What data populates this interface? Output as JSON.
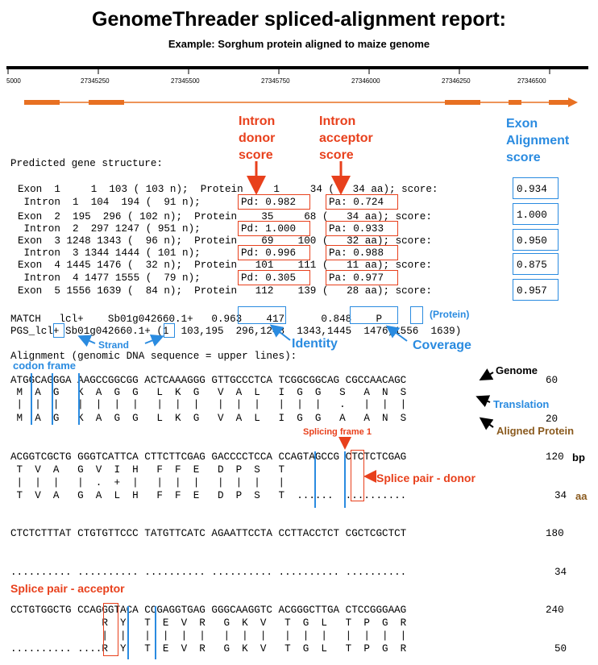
{
  "title": "GenomeThreader spliced-alignment report:",
  "subtitle": "Example: Sorghum protein aligned to maize genome",
  "ruler": {
    "ticks": [
      "5000",
      "27345250",
      "27345500",
      "27345750",
      "27346000",
      "27346250",
      "27346500"
    ]
  },
  "annotations": {
    "intron_donor": "Intron\ndonor\nscore",
    "intron_acceptor": "Intron\nacceptor\nscore",
    "exon_alignment": "Exon\nAlignment\nscore",
    "protein": "(Protein)",
    "strand": "Strand",
    "identity": "Identity",
    "coverage": "Coverage",
    "codon_frame": "codon frame",
    "genome": "Genome",
    "translation": "Translation",
    "aligned_protein": "Aligned Protein",
    "splicing_frame": "Splicing frame 1",
    "splice_donor": "Splice pair - donor",
    "splice_acceptor": "Splice pair - acceptor",
    "bp": "bp",
    "aa": "aa"
  },
  "gene_structure": {
    "heading": "Predicted gene structure:",
    "rows": [
      "Exon  1     1  103 ( 103 n);  Protein     1     34 (   34 aa); score:",
      " Intron  1  104  194 (  91 n);           Pa: 0.724",
      "Exon  2  195  296 ( 102 n);  Protein    35     68 (   34 aa); score:",
      " Intron  2  297 1247 ( 951 n);           Pa: 0.933",
      "Exon  3 1248 1343 (  96 n);  Protein    69    100 (   32 aa); score:",
      " Intron  3 1344 1444 ( 101 n);           Pa: 0.988",
      "Exon  4 1445 1476 (  32 n);  Protein   101    111 (   11 aa); score:",
      " Intron  4 1477 1555 (  79 n);           Pa: 0.977",
      "Exon  5 1556 1639 (  84 n);  Protein   112    139 (   28 aa); score:"
    ],
    "donor_scores": [
      "Pd: 0.982",
      "Pd: 1.000",
      "Pd: 0.996",
      "Pd: 0.305"
    ],
    "acceptor_scores": [
      "Pa: 0.724",
      "Pa: 0.933",
      "Pa: 0.988",
      "Pa: 0.977"
    ],
    "exon_scores": [
      "0.934",
      "1.000",
      "0.950",
      "0.875",
      "0.957"
    ]
  },
  "match_line": "MATCH   lcl+    Sb01g042660.1+   0.963    417      0.848    P",
  "pgs_line": "PGS_lcl+ Sb01g042660.1+ (1  103,195  296,1248  1343,1445  1476,1556  1639)",
  "alignment_heading": "Alignment (genomic DNA sequence = upper lines):",
  "alignment_blocks": [
    {
      "lines": [
        "ATGGCAGGGA AAGCCGGCGG ACTCAAAGGG GTTGCCCTCA TCGGCGGCAG CGCCAACAGC",
        " M  A  G   K  A  G  G   L  K  G   V  A  L   I  G  G   S   A  N  S",
        " |  |  |   |  |  |  |   |  |  |   |  |  |   |  |  |   .   |  |  |",
        " M  A  G   K  A  G  G   L  K  G   V  A  L   I  G  G   A   A  N  S"
      ],
      "bp": "60",
      "aa": "20"
    },
    {
      "lines": [
        "ACGGTCGCTG GGGTCATTCA CTTCTTCGAG GACCCCTCCA CCAGTAGCCG CTCTCTCGAG",
        " T  V  A   G  V  I  H   F  F  E   D  P  S   T",
        " |  |  |   |  .  +  |   |  |  |   |  |  |   |",
        " T  V  A   G  A  L  H   F  F  E   D  P  S   T  ......  .........."
      ],
      "bp": "120",
      "aa": "34"
    },
    {
      "lines": [
        "CTCTCTTTAT CTGTGTTCCC TATGTTCATC AGAATTCCTA CCTTACCTCT CGCTCGCTCT",
        "",
        "",
        ".......... .......... .......... .......... .......... .........."
      ],
      "bp": "180",
      "aa": "34"
    },
    {
      "lines": [
        "CCTGTGGCTG CCAGGGTACA CCGAGGTGAG GGGCAAGGTC ACGGGCTTGA CTCCGGGAAG",
        "               R  Y   T  E  V  R   G  K  V   T  G  L   T  P  G  R",
        "               |  |   |  |  |  |   |  |  |   |  |  |   |  |  |  |",
        ".......... ....R  Y   T  E  V  R   G  K  V   T  G  L   T  P  G  R"
      ],
      "bp": "240",
      "aa": "50"
    }
  ],
  "colors": {
    "red": "#e8401c",
    "blue": "#2a8be0",
    "exon_bar": "#e87022",
    "brown": "#8a5a1e"
  }
}
